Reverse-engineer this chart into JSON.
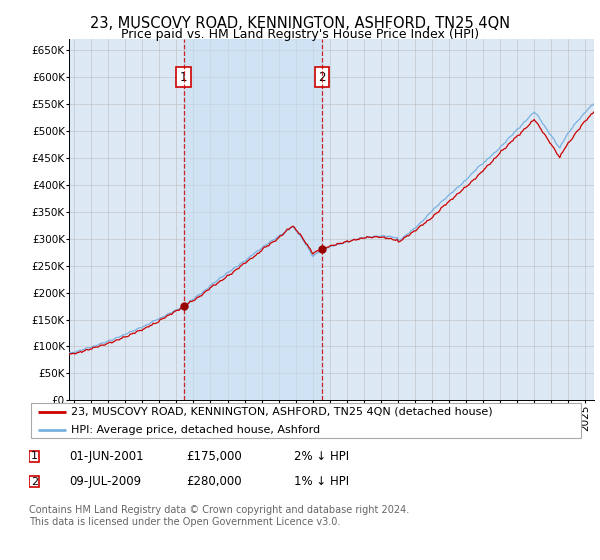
{
  "title": "23, MUSCOVY ROAD, KENNINGTON, ASHFORD, TN25 4QN",
  "subtitle": "Price paid vs. HM Land Registry's House Price Index (HPI)",
  "ylim": [
    0,
    670000
  ],
  "yticks": [
    0,
    50000,
    100000,
    150000,
    200000,
    250000,
    300000,
    350000,
    400000,
    450000,
    500000,
    550000,
    600000,
    650000
  ],
  "xlim_start": 1994.7,
  "xlim_end": 2025.5,
  "background_color": "#ffffff",
  "plot_bg_color": "#dce9f5",
  "grid_color": "#bbbbbb",
  "hpi_color": "#7ab0e0",
  "price_color": "#cc0000",
  "transaction1_date": 2001.42,
  "transaction1_price": 175000,
  "transaction1_label": "1",
  "transaction2_date": 2009.52,
  "transaction2_price": 280000,
  "transaction2_label": "2",
  "legend_line1": "23, MUSCOVY ROAD, KENNINGTON, ASHFORD, TN25 4QN (detached house)",
  "legend_line2": "HPI: Average price, detached house, Ashford",
  "table_row1": [
    "1",
    "01-JUN-2001",
    "£175,000",
    "2% ↓ HPI"
  ],
  "table_row2": [
    "2",
    "09-JUL-2009",
    "£280,000",
    "1% ↓ HPI"
  ],
  "footnote": "Contains HM Land Registry data © Crown copyright and database right 2024.\nThis data is licensed under the Open Government Licence v3.0.",
  "title_fontsize": 10.5,
  "subtitle_fontsize": 9,
  "tick_fontsize": 7.5,
  "legend_fontsize": 8,
  "table_fontsize": 8.5
}
